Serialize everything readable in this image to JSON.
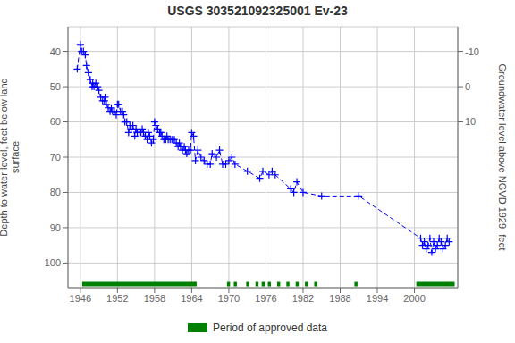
{
  "chart_data": {
    "type": "line",
    "title": "USGS 303521092325001 Ev-23",
    "ylabel": "Depth to water level, feet below land\n surface",
    "y2label": "Groundwater level above NGVD 1929, feet",
    "x": [
      1945.5,
      1946.0,
      1946.2,
      1946.5,
      1946.8,
      1947.0,
      1947.3,
      1947.6,
      1947.9,
      1948.0,
      1948.2,
      1948.5,
      1948.8,
      1949.0,
      1949.3,
      1949.6,
      1949.9,
      1950.0,
      1950.2,
      1950.5,
      1950.8,
      1951.0,
      1951.2,
      1951.5,
      1951.8,
      1952.0,
      1952.2,
      1952.5,
      1952.8,
      1953.0,
      1953.2,
      1953.5,
      1953.8,
      1954.0,
      1954.2,
      1954.5,
      1954.8,
      1955.0,
      1955.2,
      1955.5,
      1955.8,
      1956.0,
      1956.2,
      1956.5,
      1956.8,
      1957.0,
      1957.2,
      1957.5,
      1957.8,
      1958.0,
      1958.2,
      1958.5,
      1958.8,
      1959.0,
      1959.2,
      1959.5,
      1959.8,
      1960.0,
      1960.2,
      1960.5,
      1960.8,
      1961.0,
      1961.2,
      1961.5,
      1961.8,
      1962.0,
      1962.2,
      1962.5,
      1962.8,
      1963.0,
      1963.2,
      1963.5,
      1963.8,
      1964.0,
      1964.3,
      1964.6,
      1965.0,
      1965.5,
      1966.0,
      1966.5,
      1967.0,
      1967.3,
      1968.0,
      1968.5,
      1969.0,
      1969.5,
      1970.0,
      1970.5,
      1971.0,
      1973.0,
      1975.0,
      1975.5,
      1976.5,
      1977.0,
      1977.5,
      1980.0,
      1980.5,
      1981.0,
      1982.0,
      1985.0,
      1991.0,
      2001.0,
      2001.3,
      2001.6,
      2001.9,
      2002.2,
      2002.5,
      2002.8,
      2003.1,
      2003.4,
      2003.7,
      2004.0,
      2004.3,
      2004.6,
      2005.0,
      2005.3,
      2005.6
    ],
    "values": [
      45,
      38,
      40,
      40,
      41,
      44,
      46,
      48,
      50,
      49,
      50,
      49,
      50,
      51,
      53,
      54,
      54,
      53,
      55,
      56,
      57,
      56,
      57,
      57,
      58,
      55,
      55,
      57,
      57,
      58,
      60,
      60,
      63,
      61,
      62,
      61,
      64,
      62,
      63,
      63,
      63,
      62,
      63,
      64,
      65,
      63,
      64,
      66,
      65,
      60,
      61,
      62,
      63,
      63,
      64,
      65,
      65,
      64,
      65,
      65,
      65,
      65,
      65,
      66,
      67,
      66,
      67,
      68,
      67,
      68,
      69,
      68,
      68,
      63,
      64,
      71,
      68,
      70,
      71,
      72,
      72,
      69,
      70,
      68,
      72,
      72,
      71,
      70,
      72,
      74,
      76,
      74,
      75,
      74,
      75,
      79,
      80,
      77,
      80,
      81,
      81,
      93,
      95,
      94,
      96,
      95,
      93,
      97,
      94,
      96,
      95,
      93,
      94,
      96,
      95,
      93,
      94
    ],
    "color": "#0000ff",
    "marker": "plus",
    "line_style": "dashed",
    "xlim": [
      1944,
      2007
    ],
    "xticks": [
      1946,
      1952,
      1958,
      1964,
      1970,
      1976,
      1982,
      1988,
      1994,
      2000
    ],
    "ylim": [
      107,
      33
    ],
    "yticks": [
      40,
      50,
      60,
      70,
      80,
      90,
      100
    ],
    "y2lim": [
      57,
      -17
    ],
    "y2ticks": [
      10,
      0,
      -10
    ],
    "grid": true,
    "legend": "bottom",
    "approved_periods": {
      "name": "Period of approved data",
      "color": "#008000",
      "y": 106,
      "ranges": [
        [
          1946.3,
          1964.8
        ],
        [
          1969.7,
          1970.2
        ],
        [
          1970.8,
          1971.3
        ],
        [
          1972.8,
          1973.3
        ],
        [
          1974.3,
          1974.8
        ],
        [
          1975.3,
          1975.8
        ],
        [
          1976.3,
          1976.8
        ],
        [
          1977.8,
          1978.3
        ],
        [
          1979.3,
          1979.8
        ],
        [
          1980.8,
          1981.3
        ],
        [
          1982.3,
          1982.8
        ],
        [
          1983.8,
          1984.3
        ],
        [
          1990.3,
          1990.8
        ],
        [
          2000.3,
          2006.5
        ]
      ]
    }
  }
}
